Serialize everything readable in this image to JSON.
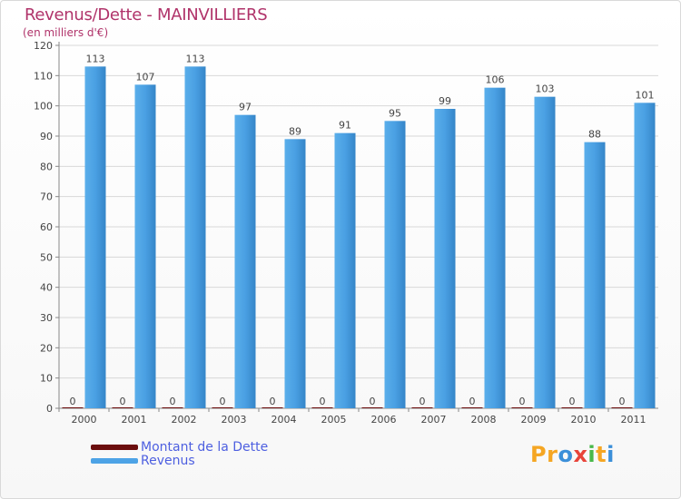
{
  "chart_data": {
    "type": "bar",
    "title": "Revenus/Dette - MAINVILLIERS",
    "subtitle": "(en milliers d'€)",
    "categories": [
      "2000",
      "2001",
      "2002",
      "2003",
      "2004",
      "2005",
      "2006",
      "2007",
      "2008",
      "2009",
      "2010",
      "2011"
    ],
    "series": [
      {
        "name": "Montant de la Dette",
        "color": "#6b0d0d",
        "values": [
          0,
          0,
          0,
          0,
          0,
          0,
          0,
          0,
          0,
          0,
          0,
          0
        ]
      },
      {
        "name": "Revenus",
        "color": "#4da3e6",
        "values": [
          113,
          107,
          113,
          97,
          89,
          91,
          95,
          99,
          106,
          103,
          88,
          101
        ]
      }
    ],
    "ylim": [
      0,
      120
    ],
    "yticks": [
      0,
      10,
      20,
      30,
      40,
      50,
      60,
      70,
      80,
      90,
      100,
      110,
      120
    ],
    "grid": true,
    "legend_position": "bottom-left"
  },
  "branding": {
    "logo_text": "Proxiti",
    "letters": [
      "P",
      "r",
      "o",
      "x",
      "i",
      "t",
      "i"
    ],
    "letter_colors": [
      "#f5a623",
      "#f5a623",
      "#3b8fd9",
      "#e8443a",
      "#49b84a",
      "#f5a623",
      "#3b8fd9"
    ]
  }
}
